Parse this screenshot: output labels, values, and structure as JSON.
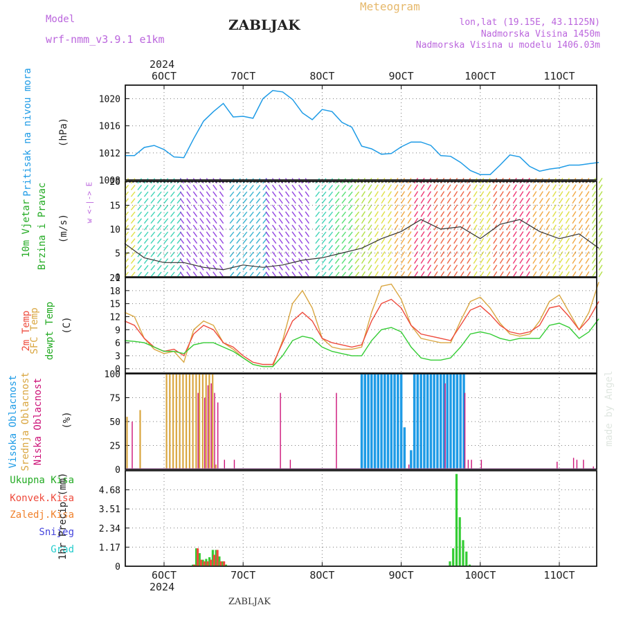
{
  "header": {
    "model_label": "Model",
    "model_name": "wrf-nmm_v3.9.1 e1km",
    "station": "ZABLJAK",
    "product": "Meteogram",
    "lonlat": "lon,lat (19.15E, 43.1125N)",
    "elevation": "Nadmorska Visina 1450m",
    "model_elevation": "Nadmorska Visina u modelu 1406.03m",
    "footer_station": "ZABLJAK",
    "credit": "made by Angel",
    "year_top": "2024",
    "year_bottom": "2024"
  },
  "colors": {
    "pressure": "#1e9be6",
    "t2m": "#ee4a3c",
    "sfc": "#d9a640",
    "dew": "#33cc33",
    "high_cloud": "#1e9be6",
    "mid_cloud": "#d9a640",
    "low_cloud": "#cc1177",
    "precip_total": "#33cc33",
    "precip_conv": "#ee4a3c",
    "frz": "#f0802a",
    "snow": "#4444dd",
    "hail": "#22cccc"
  },
  "labels": {
    "pressure_title": "Pritisak na nivou mora",
    "pressure_unit": "(hPa)",
    "wind_title_1": "10m Vjetar",
    "wind_title_2": "Brzina i Pravac",
    "wind_unit": "(m/s)",
    "wind_dir_legend": "w <-|-> E",
    "temp_t2m": "2m Temp",
    "temp_sfc": "SFC Temp",
    "temp_dew": "dewpt Temp",
    "temp_unit": "(C)",
    "cloud_high": "Visoka Oblacnost",
    "cloud_mid": "Srednja Oblacnost",
    "cloud_low": "Niska Oblacnost",
    "cloud_unit": "(%)",
    "precip_total": "Ukupna Kisa",
    "precip_conv": "Konvek.Kisa",
    "precip_frz": "Zaledj.Kisa",
    "precip_snow": "Snijeg",
    "precip_hail": "Grad",
    "precip_unit": "1hr Precip (mm)"
  },
  "chart_data": [
    {
      "type": "line",
      "title": "Pritisak na nivou mora",
      "ylabel": "(hPa)",
      "x_ticks": [
        "6OCT",
        "7OCT",
        "8OCT",
        "9OCT",
        "10OCT",
        "11OCT"
      ],
      "ylim": [
        1008,
        1022
      ],
      "y_ticks": [
        "1020",
        "1016",
        "1012",
        "1008"
      ],
      "grid": true,
      "x": [
        0,
        3,
        6,
        9,
        12,
        15,
        18,
        21,
        24,
        27,
        30,
        33,
        36,
        39,
        42,
        45,
        48,
        51,
        54,
        57,
        60,
        63,
        66,
        69,
        72,
        75,
        78,
        81,
        84,
        87,
        90,
        93,
        96,
        99,
        102,
        105,
        108,
        111,
        114,
        117,
        120,
        123,
        126,
        129,
        132,
        135,
        138,
        141,
        144
      ],
      "series": [
        {
          "name": "Pritisak na nivou mora",
          "values": [
            1011.6,
            1011.6,
            1012.8,
            1013.1,
            1012.5,
            1011.4,
            1011.3,
            1014.1,
            1016.7,
            1018.1,
            1019.3,
            1017.3,
            1017.4,
            1017.1,
            1020.0,
            1021.2,
            1021.0,
            1019.9,
            1017.9,
            1016.9,
            1018.4,
            1018.1,
            1016.5,
            1015.8,
            1013.0,
            1012.6,
            1011.8,
            1011.9,
            1012.9,
            1013.6,
            1013.6,
            1013.1,
            1011.6,
            1011.5,
            1010.6,
            1009.4,
            1008.8,
            1008.8,
            1010.2,
            1011.7,
            1011.4,
            1010.0,
            1009.3,
            1009.6,
            1009.8,
            1010.2,
            1010.2,
            1010.4,
            1010.6
          ]
        }
      ]
    },
    {
      "type": "line",
      "title": "10m Vjetar Brzina i Pravac",
      "ylabel": "(m/s)",
      "ylim": [
        0,
        20
      ],
      "y_ticks": [
        "0",
        "5",
        "10",
        "15",
        "20"
      ],
      "grid": true,
      "x": [
        0,
        6,
        12,
        18,
        24,
        30,
        36,
        42,
        48,
        54,
        60,
        66,
        72,
        78,
        84,
        90,
        96,
        102,
        108,
        114,
        120,
        126,
        132,
        138,
        144
      ],
      "series": [
        {
          "name": "10m Vjetar",
          "values": [
            7,
            4,
            3,
            3,
            2,
            1.5,
            2.5,
            2,
            2.5,
            3.5,
            4,
            5,
            6,
            8,
            9.5,
            12,
            10,
            10.5,
            8,
            11,
            12,
            9.5,
            8,
            9,
            6
          ]
        }
      ]
    },
    {
      "type": "line",
      "title": "2m Temp / SFC Temp / dewpt Temp",
      "ylabel": "(C)",
      "ylim": [
        -1,
        21
      ],
      "y_ticks": [
        "0",
        "3",
        "6",
        "9",
        "12",
        "15",
        "18",
        "21"
      ],
      "grid": true,
      "x": [
        0,
        3,
        6,
        9,
        12,
        15,
        18,
        21,
        24,
        27,
        30,
        33,
        36,
        39,
        42,
        45,
        48,
        51,
        54,
        57,
        60,
        63,
        66,
        69,
        72,
        75,
        78,
        81,
        84,
        87,
        90,
        93,
        96,
        99,
        102,
        105,
        108,
        111,
        114,
        117,
        120,
        123,
        126,
        129,
        132,
        135,
        138,
        141,
        144
      ],
      "series": [
        {
          "name": "2m Temp",
          "values": [
            11,
            10,
            7,
            5,
            4,
            4.5,
            3,
            8,
            10,
            9,
            6,
            5,
            3,
            1.5,
            1,
            1,
            6,
            11,
            13,
            11,
            7,
            6,
            5.5,
            5,
            5.5,
            11,
            15,
            16,
            14,
            10,
            8,
            7.5,
            7,
            6.5,
            10,
            13.5,
            14.5,
            12.5,
            10,
            8.5,
            8,
            8.5,
            10,
            14,
            14.5,
            12,
            9,
            11.5,
            15.5
          ]
        },
        {
          "name": "SFC Temp",
          "values": [
            13,
            12,
            7,
            4.5,
            3.5,
            4,
            1.5,
            9,
            11,
            10,
            6,
            4.5,
            2.5,
            1,
            0.5,
            0.5,
            6.5,
            15,
            18,
            14,
            7,
            5,
            4.5,
            4.5,
            5,
            13,
            19,
            19.5,
            16,
            10,
            7,
            6.5,
            6,
            6,
            11,
            15.5,
            16.5,
            14,
            10.5,
            8,
            7.5,
            8,
            11,
            15.5,
            17,
            13,
            9,
            13,
            20
          ]
        },
        {
          "name": "dewpt Temp",
          "values": [
            6.5,
            6.3,
            6,
            5,
            4,
            4,
            3.5,
            5.5,
            6,
            6,
            5,
            4,
            2.5,
            1,
            0.5,
            0.5,
            3,
            6.5,
            7.5,
            7,
            5,
            4,
            3.5,
            3,
            3,
            6.5,
            9,
            9.5,
            8.5,
            5,
            2.5,
            2,
            2,
            2.5,
            5,
            8,
            8.5,
            8,
            7,
            6.5,
            7,
            7,
            7,
            10,
            10.5,
            9.5,
            7,
            8.5,
            11.5
          ]
        }
      ]
    },
    {
      "type": "bar",
      "title": "Visoka / Srednja / Niska Oblacnost",
      "ylabel": "(%)",
      "ylim": [
        0,
        100
      ],
      "y_ticks": [
        "0",
        "25",
        "50",
        "75",
        "100"
      ],
      "grid": true,
      "series": [
        {
          "name": "Visoka Oblacnost",
          "x": [
            72,
            73,
            74,
            75,
            76,
            77,
            78,
            79,
            80,
            81,
            82,
            83,
            84,
            85,
            87,
            88,
            89,
            90,
            91,
            92,
            93,
            94,
            95,
            96,
            97,
            98,
            99,
            100,
            101,
            102,
            103
          ],
          "values": [
            100,
            100,
            100,
            100,
            100,
            100,
            100,
            100,
            100,
            100,
            100,
            100,
            100,
            44,
            20,
            100,
            100,
            100,
            100,
            100,
            100,
            100,
            100,
            100,
            100,
            100,
            100,
            100,
            100,
            100,
            100
          ]
        },
        {
          "name": "Srednja Oblacnost",
          "x": [
            1,
            5,
            13,
            14,
            15,
            16,
            17,
            18,
            19,
            20,
            21,
            22,
            23,
            24,
            25,
            26,
            27,
            28
          ],
          "values": [
            55,
            62,
            100,
            100,
            100,
            100,
            100,
            100,
            100,
            100,
            100,
            100,
            100,
            100,
            100,
            100,
            100,
            5
          ]
        },
        {
          "name": "Niska Oblacnost",
          "x": [
            2,
            22,
            24,
            25,
            26,
            27,
            28,
            30,
            33,
            47,
            50,
            64,
            86,
            97,
            103,
            104,
            105,
            108,
            131,
            136,
            137,
            139,
            142
          ],
          "values": [
            50,
            80,
            75,
            88,
            90,
            80,
            70,
            10,
            10,
            80,
            10,
            80,
            5,
            90,
            80,
            10,
            10,
            10,
            8,
            12,
            10,
            10,
            3
          ]
        }
      ]
    },
    {
      "type": "bar",
      "title": "1hr Precip",
      "ylabel": "1hr Precip (mm)",
      "ylim": [
        0,
        5.85
      ],
      "y_ticks": [
        "0",
        "1.17",
        "2.34",
        "3.51",
        "4.68"
      ],
      "grid": true,
      "series": [
        {
          "name": "Ukupna Kisa",
          "x": [
            21,
            22,
            23,
            24,
            25,
            26,
            27,
            28,
            29,
            30,
            31,
            99,
            100,
            101,
            102,
            103,
            104,
            105
          ],
          "values": [
            0.1,
            1.1,
            0.8,
            0.4,
            0.45,
            0.55,
            1.0,
            1.0,
            0.6,
            0.3,
            0.1,
            0.3,
            1.1,
            5.65,
            3.0,
            1.6,
            0.9,
            0.1
          ]
        },
        {
          "name": "Konvek.Kisa",
          "x": [
            21,
            22,
            23,
            24,
            25,
            26,
            27,
            28,
            29,
            30
          ],
          "values": [
            0.1,
            1.1,
            0.4,
            0.3,
            0.3,
            0.4,
            0.7,
            1.0,
            0.3,
            0.3
          ]
        }
      ]
    }
  ]
}
